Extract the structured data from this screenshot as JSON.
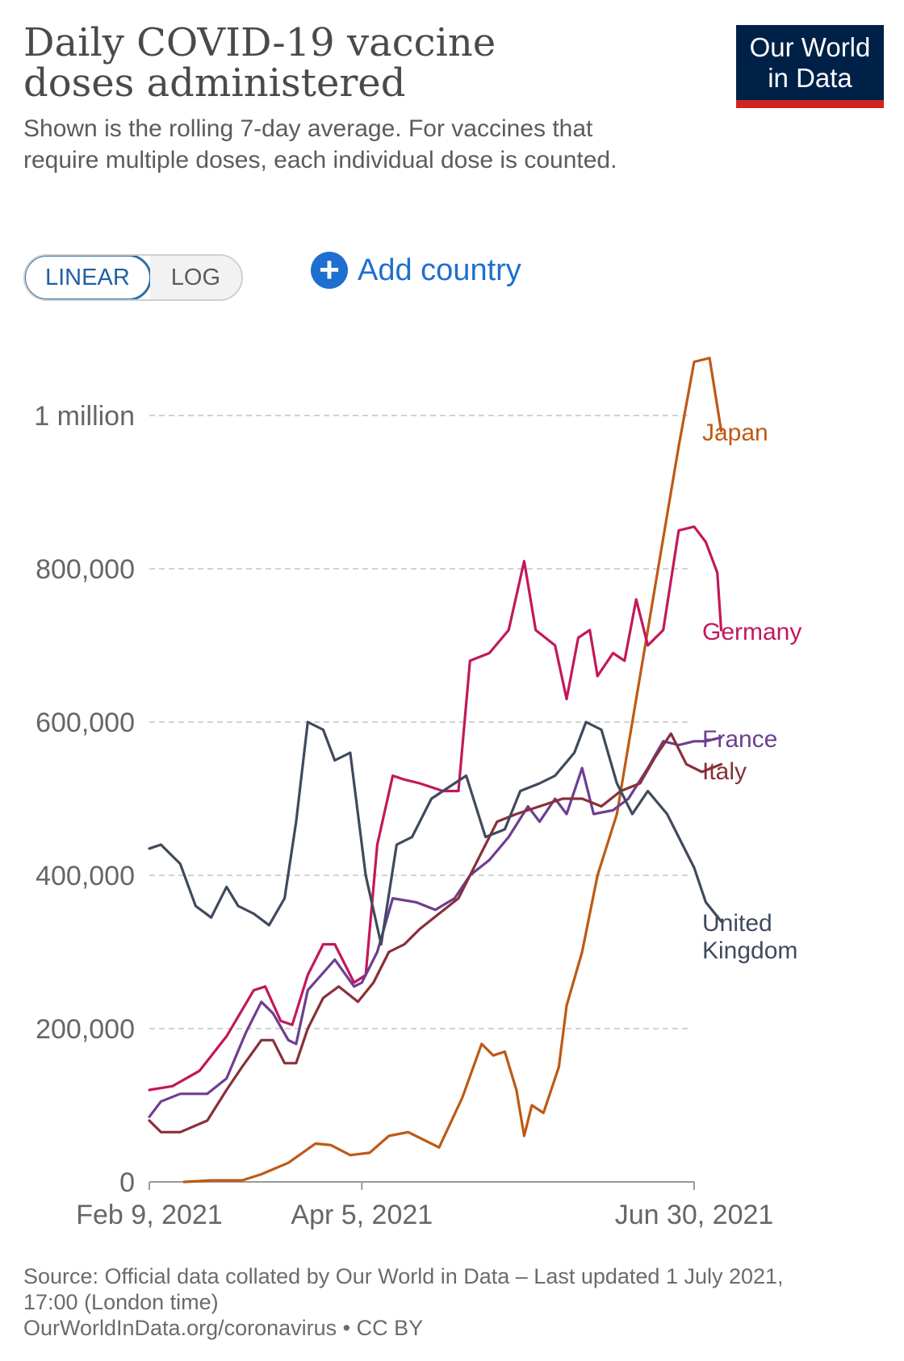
{
  "header": {
    "title": "Daily COVID-19 vaccine doses administered",
    "subtitle": "Shown is the rolling 7-day average. For vaccines that require multiple doses, each individual dose is counted."
  },
  "logo": {
    "line1": "Our World",
    "line2": "in Data",
    "bg": "#002147",
    "accent": "#ce261e"
  },
  "controls": {
    "linear_label": "LINEAR",
    "log_label": "LOG",
    "active": "linear",
    "add_country_label": "Add country",
    "add_icon": "plus-circle-icon"
  },
  "footer": {
    "source_line1": "Source: Official data collated by Our World in Data – Last updated 1 July 2021,",
    "source_line2": "17:00 (London time)",
    "link_line": "OurWorldInData.org/coronavirus • CC BY"
  },
  "chart_data": {
    "type": "line",
    "x_start": "2021-02-09",
    "x_end": "2021-06-30",
    "ylim": [
      0,
      1100000
    ],
    "grid": true,
    "legend": "end-of-line labels",
    "y_ticks": [
      {
        "value": 0,
        "label": "0"
      },
      {
        "value": 200000,
        "label": "200,000"
      },
      {
        "value": 400000,
        "label": "400,000"
      },
      {
        "value": 600000,
        "label": "600,000"
      },
      {
        "value": 800000,
        "label": "800,000"
      },
      {
        "value": 1000000,
        "label": "1 million"
      }
    ],
    "x_ticks": [
      {
        "date": "2021-02-09",
        "label": "Feb 9, 2021"
      },
      {
        "date": "2021-04-05",
        "label": "Apr 5, 2021"
      },
      {
        "date": "2021-06-30",
        "label": "Jun 30, 2021"
      }
    ],
    "series": [
      {
        "name": "Japan",
        "color": "#be5915",
        "points": [
          [
            "2021-02-18",
            0
          ],
          [
            "2021-02-25",
            2000
          ],
          [
            "2021-03-05",
            2000
          ],
          [
            "2021-03-10",
            10000
          ],
          [
            "2021-03-17",
            25000
          ],
          [
            "2021-03-24",
            50000
          ],
          [
            "2021-03-28",
            48000
          ],
          [
            "2021-04-02",
            35000
          ],
          [
            "2021-04-07",
            38000
          ],
          [
            "2021-04-12",
            60000
          ],
          [
            "2021-04-17",
            65000
          ],
          [
            "2021-04-21",
            55000
          ],
          [
            "2021-04-25",
            45000
          ],
          [
            "2021-05-01",
            110000
          ],
          [
            "2021-05-06",
            180000
          ],
          [
            "2021-05-09",
            165000
          ],
          [
            "2021-05-12",
            170000
          ],
          [
            "2021-05-15",
            120000
          ],
          [
            "2021-05-17",
            60000
          ],
          [
            "2021-05-19",
            100000
          ],
          [
            "2021-05-22",
            90000
          ],
          [
            "2021-05-26",
            150000
          ],
          [
            "2021-05-28",
            230000
          ],
          [
            "2021-06-01",
            300000
          ],
          [
            "2021-06-05",
            400000
          ],
          [
            "2021-06-10",
            480000
          ],
          [
            "2021-06-14",
            600000
          ],
          [
            "2021-06-18",
            720000
          ],
          [
            "2021-06-22",
            840000
          ],
          [
            "2021-06-26",
            960000
          ],
          [
            "2021-06-30",
            1070000
          ],
          [
            "2021-07-04",
            1075000
          ],
          [
            "2021-07-07",
            980000
          ]
        ]
      },
      {
        "name": "Germany",
        "color": "#c2185b",
        "points": [
          [
            "2021-02-09",
            120000
          ],
          [
            "2021-02-15",
            125000
          ],
          [
            "2021-02-22",
            145000
          ],
          [
            "2021-03-01",
            190000
          ],
          [
            "2021-03-08",
            250000
          ],
          [
            "2021-03-11",
            255000
          ],
          [
            "2021-03-15",
            210000
          ],
          [
            "2021-03-18",
            205000
          ],
          [
            "2021-03-22",
            270000
          ],
          [
            "2021-03-26",
            310000
          ],
          [
            "2021-03-29",
            310000
          ],
          [
            "2021-04-03",
            260000
          ],
          [
            "2021-04-06",
            270000
          ],
          [
            "2021-04-09",
            440000
          ],
          [
            "2021-04-13",
            530000
          ],
          [
            "2021-04-16",
            525000
          ],
          [
            "2021-04-20",
            520000
          ],
          [
            "2021-04-26",
            510000
          ],
          [
            "2021-04-30",
            510000
          ],
          [
            "2021-05-03",
            680000
          ],
          [
            "2021-05-08",
            690000
          ],
          [
            "2021-05-13",
            720000
          ],
          [
            "2021-05-17",
            810000
          ],
          [
            "2021-05-20",
            720000
          ],
          [
            "2021-05-25",
            700000
          ],
          [
            "2021-05-28",
            630000
          ],
          [
            "2021-05-31",
            710000
          ],
          [
            "2021-06-03",
            720000
          ],
          [
            "2021-06-05",
            660000
          ],
          [
            "2021-06-09",
            690000
          ],
          [
            "2021-06-12",
            680000
          ],
          [
            "2021-06-15",
            760000
          ],
          [
            "2021-06-18",
            700000
          ],
          [
            "2021-06-22",
            720000
          ],
          [
            "2021-06-26",
            850000
          ],
          [
            "2021-06-30",
            855000
          ],
          [
            "2021-07-03",
            835000
          ],
          [
            "2021-07-06",
            795000
          ],
          [
            "2021-07-07",
            720000
          ]
        ]
      },
      {
        "name": "France",
        "color": "#6d3e91",
        "points": [
          [
            "2021-02-09",
            85000
          ],
          [
            "2021-02-12",
            105000
          ],
          [
            "2021-02-17",
            115000
          ],
          [
            "2021-02-24",
            115000
          ],
          [
            "2021-03-01",
            135000
          ],
          [
            "2021-03-06",
            195000
          ],
          [
            "2021-03-10",
            235000
          ],
          [
            "2021-03-13",
            220000
          ],
          [
            "2021-03-17",
            185000
          ],
          [
            "2021-03-19",
            180000
          ],
          [
            "2021-03-22",
            250000
          ],
          [
            "2021-03-29",
            290000
          ],
          [
            "2021-04-03",
            255000
          ],
          [
            "2021-04-05",
            260000
          ],
          [
            "2021-04-09",
            300000
          ],
          [
            "2021-04-13",
            370000
          ],
          [
            "2021-04-19",
            365000
          ],
          [
            "2021-04-24",
            355000
          ],
          [
            "2021-04-29",
            370000
          ],
          [
            "2021-05-03",
            400000
          ],
          [
            "2021-05-08",
            420000
          ],
          [
            "2021-05-13",
            450000
          ],
          [
            "2021-05-18",
            490000
          ],
          [
            "2021-05-21",
            470000
          ],
          [
            "2021-05-25",
            500000
          ],
          [
            "2021-05-28",
            480000
          ],
          [
            "2021-06-01",
            540000
          ],
          [
            "2021-06-04",
            480000
          ],
          [
            "2021-06-09",
            485000
          ],
          [
            "2021-06-13",
            500000
          ],
          [
            "2021-06-18",
            540000
          ],
          [
            "2021-06-22",
            575000
          ],
          [
            "2021-06-26",
            570000
          ],
          [
            "2021-06-30",
            575000
          ],
          [
            "2021-07-03",
            575000
          ],
          [
            "2021-07-07",
            580000
          ]
        ]
      },
      {
        "name": "Italy",
        "color": "#883039",
        "points": [
          [
            "2021-02-09",
            80000
          ],
          [
            "2021-02-12",
            65000
          ],
          [
            "2021-02-17",
            65000
          ],
          [
            "2021-02-24",
            80000
          ],
          [
            "2021-03-01",
            120000
          ],
          [
            "2021-03-05",
            150000
          ],
          [
            "2021-03-10",
            185000
          ],
          [
            "2021-03-13",
            185000
          ],
          [
            "2021-03-16",
            155000
          ],
          [
            "2021-03-19",
            155000
          ],
          [
            "2021-03-22",
            200000
          ],
          [
            "2021-03-26",
            240000
          ],
          [
            "2021-03-30",
            255000
          ],
          [
            "2021-04-04",
            235000
          ],
          [
            "2021-04-08",
            260000
          ],
          [
            "2021-04-12",
            300000
          ],
          [
            "2021-04-16",
            310000
          ],
          [
            "2021-04-20",
            330000
          ],
          [
            "2021-04-25",
            350000
          ],
          [
            "2021-04-30",
            370000
          ],
          [
            "2021-05-05",
            420000
          ],
          [
            "2021-05-10",
            470000
          ],
          [
            "2021-05-15",
            480000
          ],
          [
            "2021-05-21",
            490000
          ],
          [
            "2021-05-27",
            500000
          ],
          [
            "2021-06-01",
            500000
          ],
          [
            "2021-06-06",
            490000
          ],
          [
            "2021-06-11",
            510000
          ],
          [
            "2021-06-16",
            520000
          ],
          [
            "2021-06-20",
            555000
          ],
          [
            "2021-06-24",
            585000
          ],
          [
            "2021-06-28",
            545000
          ],
          [
            "2021-07-02",
            535000
          ],
          [
            "2021-07-07",
            545000
          ]
        ]
      },
      {
        "name": "United Kingdom",
        "color": "#3f4a5e",
        "points": [
          [
            "2021-02-09",
            435000
          ],
          [
            "2021-02-12",
            440000
          ],
          [
            "2021-02-17",
            415000
          ],
          [
            "2021-02-21",
            360000
          ],
          [
            "2021-02-25",
            345000
          ],
          [
            "2021-03-01",
            385000
          ],
          [
            "2021-03-04",
            360000
          ],
          [
            "2021-03-08",
            350000
          ],
          [
            "2021-03-12",
            335000
          ],
          [
            "2021-03-16",
            370000
          ],
          [
            "2021-03-19",
            470000
          ],
          [
            "2021-03-22",
            600000
          ],
          [
            "2021-03-26",
            590000
          ],
          [
            "2021-03-29",
            550000
          ],
          [
            "2021-04-02",
            560000
          ],
          [
            "2021-04-06",
            400000
          ],
          [
            "2021-04-10",
            310000
          ],
          [
            "2021-04-14",
            440000
          ],
          [
            "2021-04-18",
            450000
          ],
          [
            "2021-04-23",
            500000
          ],
          [
            "2021-04-29",
            520000
          ],
          [
            "2021-05-02",
            530000
          ],
          [
            "2021-05-07",
            450000
          ],
          [
            "2021-05-12",
            460000
          ],
          [
            "2021-05-16",
            510000
          ],
          [
            "2021-05-21",
            520000
          ],
          [
            "2021-05-25",
            530000
          ],
          [
            "2021-05-30",
            560000
          ],
          [
            "2021-06-02",
            600000
          ],
          [
            "2021-06-06",
            590000
          ],
          [
            "2021-06-10",
            520000
          ],
          [
            "2021-06-14",
            480000
          ],
          [
            "2021-06-18",
            510000
          ],
          [
            "2021-06-23",
            480000
          ],
          [
            "2021-06-27",
            440000
          ],
          [
            "2021-06-30",
            410000
          ],
          [
            "2021-07-03",
            365000
          ],
          [
            "2021-07-07",
            340000
          ]
        ]
      }
    ]
  }
}
